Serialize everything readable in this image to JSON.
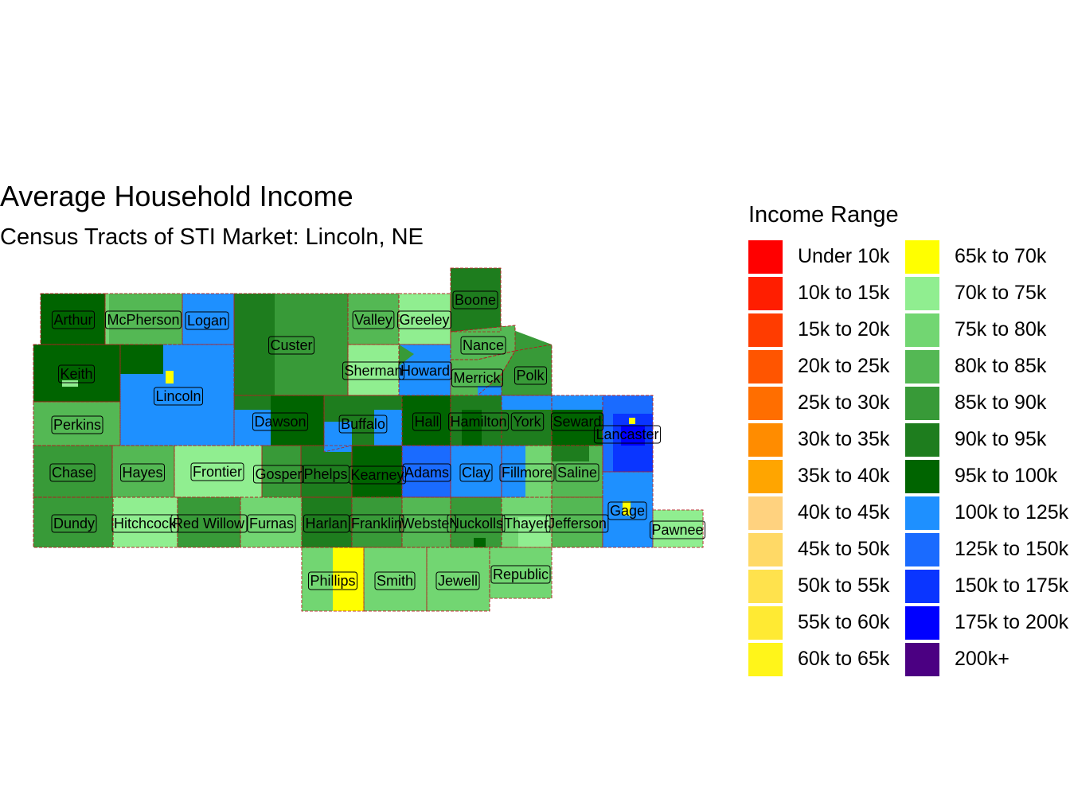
{
  "title": "Average Household Income",
  "subtitle": "Census Tracts of STI Market: Lincoln, NE",
  "legend": {
    "title": "Income Range",
    "items": [
      {
        "label": "Under 10k",
        "color": "#FF0000"
      },
      {
        "label": "10k to 15k",
        "color": "#FF1E00"
      },
      {
        "label": "15k to 20k",
        "color": "#FF3C00"
      },
      {
        "label": "20k to 25k",
        "color": "#FF5500"
      },
      {
        "label": "25k to 30k",
        "color": "#FF6E00"
      },
      {
        "label": "30k to 35k",
        "color": "#FF8C00"
      },
      {
        "label": "35k to 40k",
        "color": "#FFA500"
      },
      {
        "label": "40k to 45k",
        "color": "#FFD27F"
      },
      {
        "label": "45k to 50k",
        "color": "#FFD966"
      },
      {
        "label": "50k to 55k",
        "color": "#FFE24D"
      },
      {
        "label": "55k to 60k",
        "color": "#FFEA33"
      },
      {
        "label": "60k to 65k",
        "color": "#FFF51A"
      },
      {
        "label": "65k to 70k",
        "color": "#FFFF00"
      },
      {
        "label": "70k to 75k",
        "color": "#90EE90"
      },
      {
        "label": "75k to 80k",
        "color": "#72D672"
      },
      {
        "label": "80k to 85k",
        "color": "#54B854"
      },
      {
        "label": "85k to 90k",
        "color": "#389A38"
      },
      {
        "label": "90k to 95k",
        "color": "#1E7D1E"
      },
      {
        "label": "95k to 100k",
        "color": "#006400"
      },
      {
        "label": "100k to 125k",
        "color": "#1E90FF"
      },
      {
        "label": "125k to 150k",
        "color": "#1A6BFF"
      },
      {
        "label": "150k to 175k",
        "color": "#0A35FF"
      },
      {
        "label": "175k to 200k",
        "color": "#0000FF"
      },
      {
        "label": "200k+",
        "color": "#4B0082"
      }
    ]
  },
  "counties": [
    {
      "name": "Arthur",
      "fill": "#006400"
    },
    {
      "name": "McPherson",
      "fill": "#72D672"
    },
    {
      "name": "Logan",
      "fill": "#1E90FF"
    },
    {
      "name": "Custer",
      "fill": "#389A38"
    },
    {
      "name": "Valley",
      "fill": "#54B854"
    },
    {
      "name": "Greeley",
      "fill": "#90EE90"
    },
    {
      "name": "Boone",
      "fill": "#1E7D1E"
    },
    {
      "name": "Nance",
      "fill": "#54B854"
    },
    {
      "name": "Keith",
      "fill": "#006400"
    },
    {
      "name": "Lincoln",
      "fill": "#1E90FF"
    },
    {
      "name": "Sherman",
      "fill": "#90EE90"
    },
    {
      "name": "Howard",
      "fill": "#389A38"
    },
    {
      "name": "Merrick",
      "fill": "#54B854"
    },
    {
      "name": "Polk",
      "fill": "#389A38"
    },
    {
      "name": "Perkins",
      "fill": "#54B854"
    },
    {
      "name": "Dawson",
      "fill": "#1E7D1E"
    },
    {
      "name": "Buffalo",
      "fill": "#1E7D1E"
    },
    {
      "name": "Hall",
      "fill": "#006400"
    },
    {
      "name": "Hamilton",
      "fill": "#1E7D1E"
    },
    {
      "name": "York",
      "fill": "#1E7D1E"
    },
    {
      "name": "Seward",
      "fill": "#006400"
    },
    {
      "name": "Lancaster",
      "fill": "#1A6BFF"
    },
    {
      "name": "Chase",
      "fill": "#389A38"
    },
    {
      "name": "Hayes",
      "fill": "#54B854"
    },
    {
      "name": "Frontier",
      "fill": "#90EE90"
    },
    {
      "name": "Gosper",
      "fill": "#389A38"
    },
    {
      "name": "Phelps",
      "fill": "#1E7D1E"
    },
    {
      "name": "Kearney",
      "fill": "#006400"
    },
    {
      "name": "Adams",
      "fill": "#1A6BFF"
    },
    {
      "name": "Clay",
      "fill": "#1E90FF"
    },
    {
      "name": "Fillmore",
      "fill": "#1E90FF"
    },
    {
      "name": "Saline",
      "fill": "#54B854"
    },
    {
      "name": "Dundy",
      "fill": "#389A38"
    },
    {
      "name": "Hitchcock",
      "fill": "#90EE90"
    },
    {
      "name": "Red Willow",
      "fill": "#389A38"
    },
    {
      "name": "Furnas",
      "fill": "#72D672"
    },
    {
      "name": "Harlan",
      "fill": "#1E7D1E"
    },
    {
      "name": "Franklin",
      "fill": "#389A38"
    },
    {
      "name": "Webster",
      "fill": "#54B854"
    },
    {
      "name": "Nuckolls",
      "fill": "#389A38"
    },
    {
      "name": "Thayer",
      "fill": "#72D672"
    },
    {
      "name": "Jefferson",
      "fill": "#54B854"
    },
    {
      "name": "Gage",
      "fill": "#1E90FF"
    },
    {
      "name": "Pawnee",
      "fill": "#90EE90"
    },
    {
      "name": "Phillips",
      "fill": "#72D672"
    },
    {
      "name": "Smith",
      "fill": "#72D672"
    },
    {
      "name": "Jewell",
      "fill": "#72D672"
    },
    {
      "name": "Republic",
      "fill": "#90EE90"
    }
  ]
}
